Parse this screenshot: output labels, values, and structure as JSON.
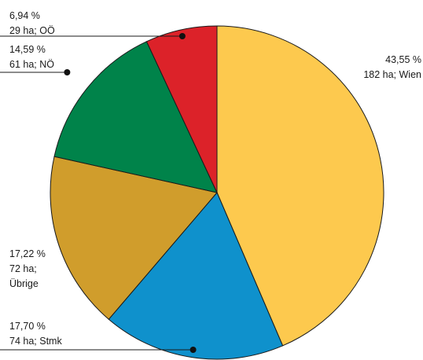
{
  "chart_data": {
    "type": "pie",
    "title": "",
    "slices": [
      {
        "pct": 43.55,
        "pct_label": "43,55 %",
        "ha": 182,
        "line1": "43,55 %",
        "line2": "182 ha; Wien",
        "line3": "",
        "color": "#fdc94e"
      },
      {
        "pct": 17.7,
        "pct_label": "17,70 %",
        "ha": 74,
        "line1": "17,70 %",
        "line2": "74 ha; Stmk",
        "line3": "",
        "color": "#0f91cc"
      },
      {
        "pct": 17.22,
        "pct_label": "17,22 %",
        "ha": 72,
        "line1": "17,22 %",
        "line2": "72 ha;",
        "line3": "Übrige",
        "color": "#d09d2c"
      },
      {
        "pct": 14.59,
        "pct_label": "14,59 %",
        "ha": 61,
        "line1": "14,59 %",
        "line2": "61 ha; NÖ",
        "line3": "",
        "color": "#00834a"
      },
      {
        "pct": 6.94,
        "pct_label": "6,94 %",
        "ha": 29,
        "line1": "6,94 %",
        "line2": "29 ha; OÖ",
        "line3": "",
        "color": "#dc2229"
      }
    ]
  }
}
